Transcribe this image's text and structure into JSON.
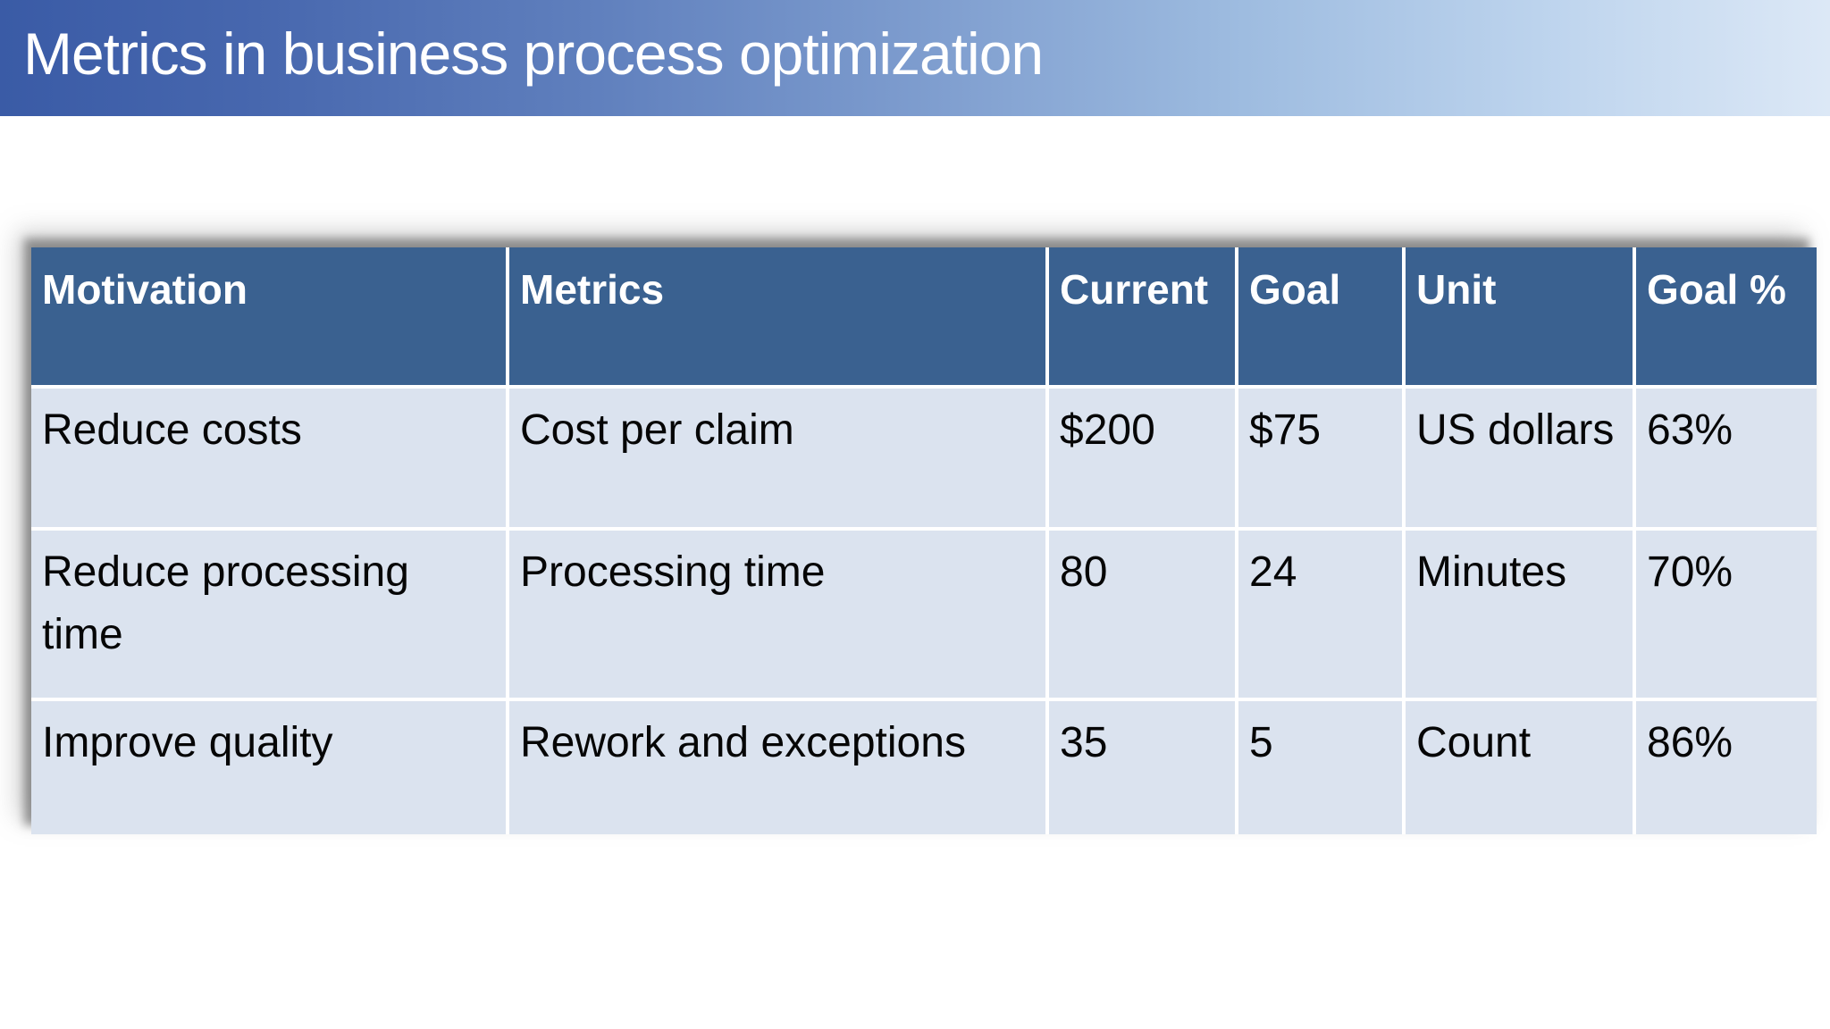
{
  "slide": {
    "title": "Metrics in business process optimization"
  },
  "theme": {
    "title_gradient_left": "#3A5BA6",
    "title_gradient_right": "#DCE8F6",
    "table_header_bg": "#3A6190",
    "table_row_bg": "#DBE3EF",
    "header_text_color": "#FFFFFF",
    "body_text_color": "#060606",
    "gridline_color": "#FFFFFF"
  },
  "table": {
    "columns": [
      "Motivation",
      "Metrics",
      "Current",
      "Goal",
      "Unit",
      "Goal %"
    ],
    "rows": [
      {
        "cells": [
          "Reduce costs",
          "Cost per claim",
          "$200",
          "$75",
          "US dollars",
          "63%"
        ]
      },
      {
        "cells": [
          "Reduce processing time",
          "Processing time",
          "80",
          "24",
          "Minutes",
          "70%"
        ]
      },
      {
        "cells": [
          "Improve quality",
          "Rework and exceptions",
          "35",
          "5",
          "Count",
          "86%"
        ]
      }
    ]
  }
}
